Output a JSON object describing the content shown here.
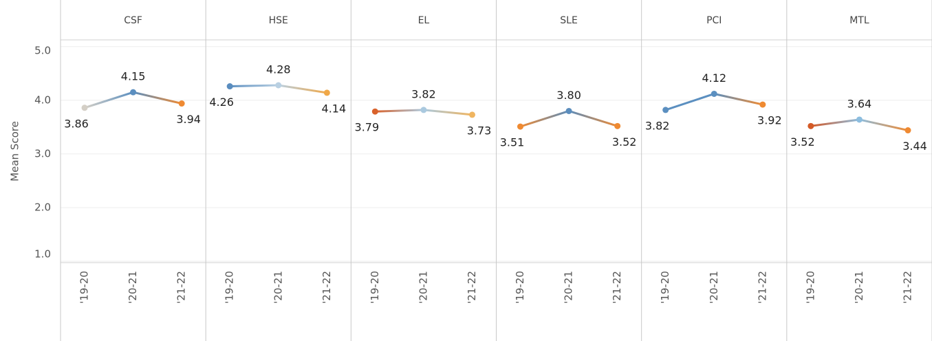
{
  "chart_data": [
    {
      "type": "line",
      "title": "CSF",
      "ylabel": "Mean Score",
      "ylim": [
        1,
        5.1
      ],
      "yticks": [
        {
          "value": 1,
          "label": "1.0"
        },
        {
          "value": 2,
          "label": "2.0"
        },
        {
          "value": 3,
          "label": "3.0"
        },
        {
          "value": 4,
          "label": "4.0"
        },
        {
          "value": 5,
          "label": "5.0"
        }
      ],
      "categories": [
        "'19-20",
        "'20-21",
        "'21-22"
      ],
      "values": [
        3.86,
        4.15,
        3.94
      ],
      "value_labels": [
        "3.86",
        "4.15",
        "3.94"
      ],
      "colors": [
        "#d4cfc6",
        "#5b8fc0",
        "#ef8a32"
      ]
    },
    {
      "type": "line",
      "title": "HSE",
      "categories": [
        "'19-20",
        "'20-21",
        "'21-22"
      ],
      "values": [
        4.26,
        4.28,
        4.14
      ],
      "value_labels": [
        "4.26",
        "4.28",
        "4.14"
      ],
      "colors": [
        "#5a8dbf",
        "#b9d0e2",
        "#f0a848"
      ]
    },
    {
      "type": "line",
      "title": "EL",
      "categories": [
        "'19-20",
        "'20-21",
        "'21-22"
      ],
      "values": [
        3.79,
        3.82,
        3.73
      ],
      "value_labels": [
        "3.79",
        "3.82",
        "3.73"
      ],
      "colors": [
        "#d9622b",
        "#aac9df",
        "#f0b560"
      ]
    },
    {
      "type": "line",
      "title": "SLE",
      "categories": [
        "'19-20",
        "'20-21",
        "'21-22"
      ],
      "values": [
        3.51,
        3.8,
        3.52
      ],
      "value_labels": [
        "3.51",
        "3.80",
        "3.52"
      ],
      "colors": [
        "#ef8a32",
        "#5b8dbd",
        "#ef8a32"
      ]
    },
    {
      "type": "line",
      "title": "PCI",
      "categories": [
        "'19-20",
        "'20-21",
        "'21-22"
      ],
      "values": [
        3.82,
        4.12,
        3.92
      ],
      "value_labels": [
        "3.82",
        "4.12",
        "3.92"
      ],
      "colors": [
        "#5b8fc0",
        "#5b8fc0",
        "#ef8a32"
      ]
    },
    {
      "type": "line",
      "title": "MTL",
      "categories": [
        "'19-20",
        "'20-21",
        "'21-22"
      ],
      "values": [
        3.52,
        3.64,
        3.44
      ],
      "value_labels": [
        "3.52",
        "3.64",
        "3.44"
      ],
      "colors": [
        "#d45a27",
        "#8cbddf",
        "#ef8a32"
      ]
    }
  ]
}
